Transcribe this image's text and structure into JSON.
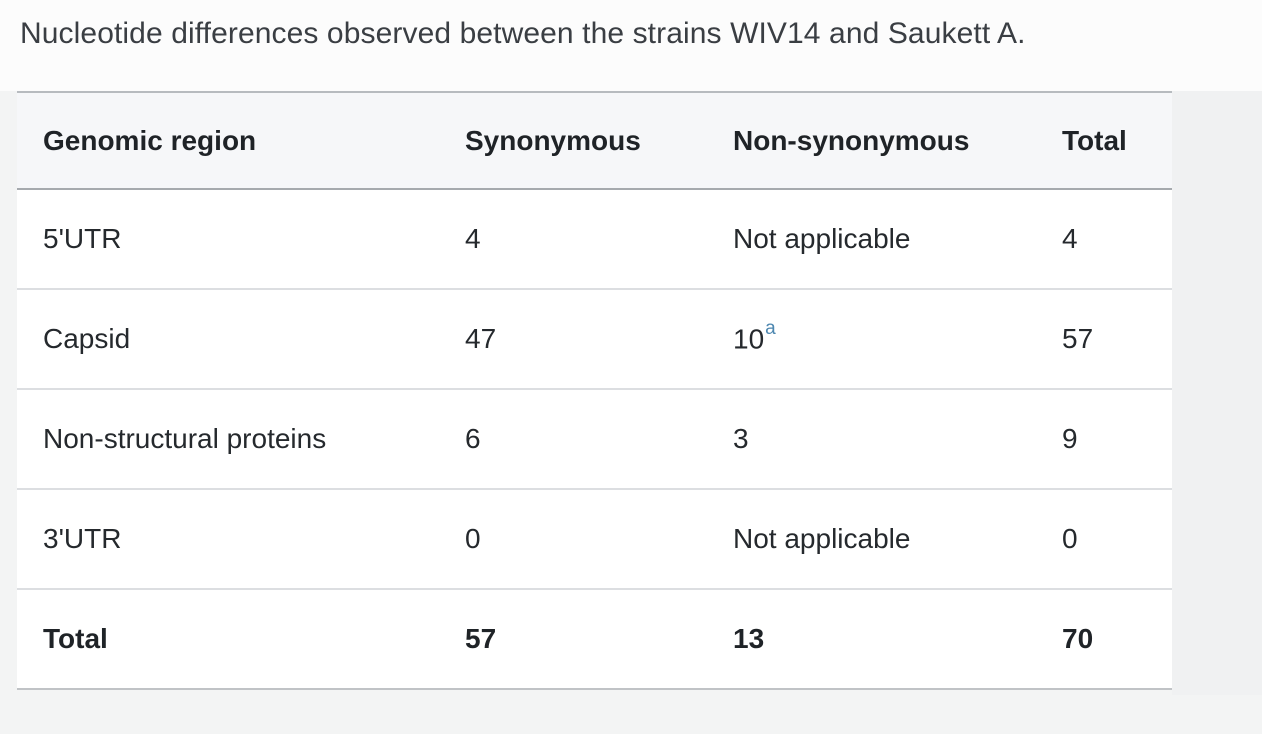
{
  "caption": "Nucleotide differences observed between the strains WIV14 and Saukett A.",
  "table": {
    "columns": [
      "Genomic region",
      "Synonymous",
      "Non-synonymous",
      "Total"
    ],
    "rows": [
      {
        "region": "5'UTR",
        "synonymous": "4",
        "non_synonymous": "Not applicable",
        "total": "4"
      },
      {
        "region": "Capsid",
        "synonymous": "47",
        "non_synonymous": "10",
        "non_synonymous_footnote": "a",
        "total": "57"
      },
      {
        "region": "Non-structural proteins",
        "synonymous": "6",
        "non_synonymous": "3",
        "total": "9"
      },
      {
        "region": "3'UTR",
        "synonymous": "0",
        "non_synonymous": "Not applicable",
        "total": "0"
      }
    ],
    "footer": {
      "region": "Total",
      "synonymous": "57",
      "non_synonymous": "13",
      "total": "70"
    }
  },
  "colors": {
    "footnote_link": "#4d87b0",
    "header_bg": "#f6f7f9",
    "body_text": "#25292d",
    "caption_text": "#3a3e43"
  }
}
